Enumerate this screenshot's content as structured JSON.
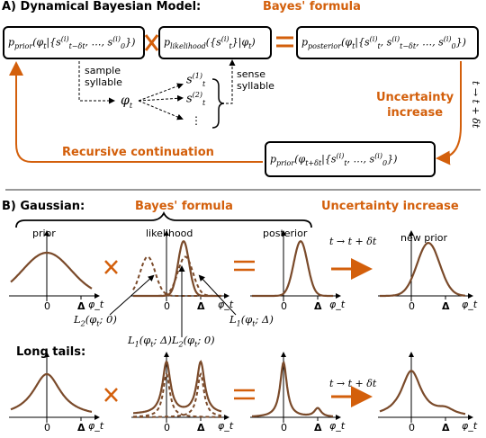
{
  "sectionA": {
    "heading": "A) Dynamical Bayesian Model:",
    "bayes": "Bayes' formula",
    "uncertainty": "Uncertainty\nincrease",
    "recursive": "Recursive continuation",
    "sample": "sample\nsyllable",
    "sense": "sense\nsyllable",
    "rotated": "t → t + δt",
    "boxes": {
      "prior": "p_prior(φ_t | {s^(i)_{t−δt}, …, s^(i)_0})",
      "likelihood": "p_likelihood({s^(i)_t} | φ_t)",
      "posterior": "p_posterior(φ_t | {s^(i)_t, s^(i)_{t−δt}, …, s^(i)_0})",
      "next_prior": "p_prior(φ_{t+δt} | {s^(i)_t, …, s^(i)_0})"
    },
    "phi": "φ_t",
    "samples": [
      "s^(1)_t",
      "s^(2)_t",
      "⋮"
    ]
  },
  "sectionB": {
    "heading": "B) Gaussian:",
    "bayes": "Bayes' formula",
    "uncertainty": "Uncertainty increase",
    "labels": {
      "prior": "prior",
      "likelihood": "likelihood",
      "posterior": "posterior",
      "new_prior": "new prior",
      "time": "t → t + δt",
      "axis": "φ_t",
      "zero": "0",
      "delta": "Δ",
      "L2": "L2(φt; 0)",
      "L1": "L1(φt; Δ)",
      "L1L2": "L1(φt; Δ)L2(φt; 0)"
    },
    "long_tails": "Long tails:"
  },
  "colors": {
    "accent": "#d35f0b",
    "curve": "#7a4a2a"
  }
}
